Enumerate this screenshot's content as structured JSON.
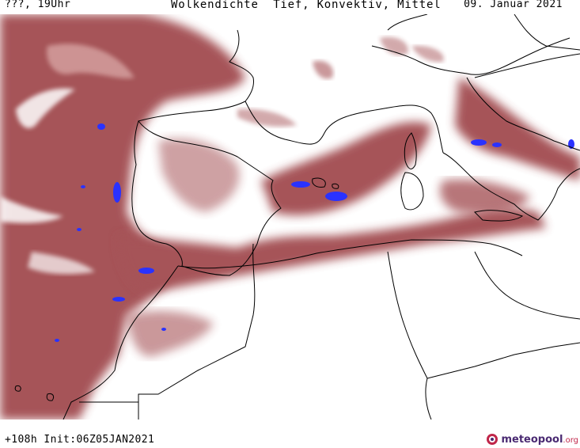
{
  "header": {
    "run_label": "???, 19Uhr",
    "title": "Wolkendichte  Tief, Konvektiv, Mittel",
    "date": "09. Januar 2021"
  },
  "footer": {
    "forecast_info": "+108h Init:06Z05JAN2021",
    "logo_name": "meteopool",
    "logo_tld": ".org"
  },
  "colors": {
    "cloud_fill": "#9e4548",
    "cloud_light": "#c98a8a",
    "convective_core": "#2a32ff",
    "coastline": "#000000",
    "background": "#ffffff"
  }
}
